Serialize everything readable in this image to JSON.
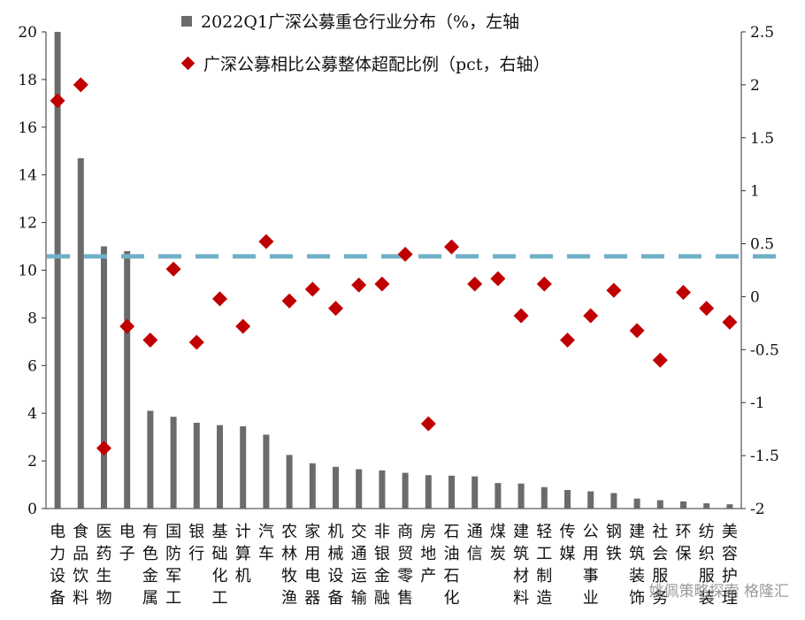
{
  "legend": {
    "bar_label": "2022Q1广深公募重仓行业分布（%，左轴",
    "marker_label": "广深公募相比公募整体超配比例（pct，右轴）"
  },
  "watermark": "姚佩策略探索  格隆汇",
  "colors": {
    "bar": "#6b6b6b",
    "marker": "#c00000",
    "reference_line": "#6fb0c8"
  },
  "chart_data": {
    "type": "bar",
    "categories": [
      "电力设备",
      "食品饮料",
      "医药生物",
      "电子",
      "有色金属",
      "国防军工",
      "银行",
      "基础化工",
      "计算机",
      "汽车",
      "农林牧渔",
      "家用电器",
      "机械设备",
      "交通运输",
      "非银金融",
      "商贸零售",
      "房地产",
      "石油石化",
      "通信",
      "煤炭",
      "建筑材料",
      "轻工制造",
      "传媒",
      "公用事业",
      "钢铁",
      "建筑装饰",
      "社会服务",
      "环保",
      "纺织服装",
      "美容护理"
    ],
    "category_lines": [
      [
        "电",
        "力",
        "设",
        "备"
      ],
      [
        "食",
        "品",
        "饮",
        "料"
      ],
      [
        "医",
        "药",
        "生",
        "物"
      ],
      [
        "电",
        "子"
      ],
      [
        "有",
        "色",
        "金",
        "属"
      ],
      [
        "国",
        "防",
        "军",
        "工"
      ],
      [
        "银",
        "行"
      ],
      [
        "基",
        "础",
        "化",
        "工"
      ],
      [
        "计",
        "算",
        "机"
      ],
      [
        "汽",
        "车"
      ],
      [
        "农",
        "林",
        "牧",
        "渔"
      ],
      [
        "家",
        "用",
        "电",
        "器"
      ],
      [
        "机",
        "械",
        "设",
        "备"
      ],
      [
        "交",
        "通",
        "运",
        "输"
      ],
      [
        "非",
        "银",
        "金",
        "融"
      ],
      [
        "商",
        "贸",
        "零",
        "售"
      ],
      [
        "房",
        "地",
        "产"
      ],
      [
        "石",
        "油",
        "石",
        "化"
      ],
      [
        "通",
        "信"
      ],
      [
        "煤",
        "炭"
      ],
      [
        "建",
        "筑",
        "材",
        "料"
      ],
      [
        "轻",
        "工",
        "制",
        "造"
      ],
      [
        "传",
        "媒"
      ],
      [
        "公",
        "用",
        "事",
        "业"
      ],
      [
        "钢",
        "铁"
      ],
      [
        "建",
        "筑",
        "装",
        "饰"
      ],
      [
        "社",
        "会",
        "服",
        "务"
      ],
      [
        "环",
        "保"
      ],
      [
        "纺",
        "织",
        "服",
        "装"
      ],
      [
        "美",
        "容",
        "护",
        "理"
      ]
    ],
    "series": [
      {
        "name": "2022Q1广深公募重仓行业分布（%，左轴",
        "axis": "left",
        "type": "bar",
        "values": [
          20.0,
          14.7,
          11.0,
          10.8,
          4.1,
          3.85,
          3.6,
          3.5,
          3.45,
          3.1,
          2.25,
          1.9,
          1.75,
          1.65,
          1.6,
          1.5,
          1.4,
          1.38,
          1.35,
          1.07,
          1.05,
          0.9,
          0.78,
          0.72,
          0.65,
          0.42,
          0.35,
          0.3,
          0.22,
          0.18
        ]
      },
      {
        "name": "广深公募相比公募整体超配比例（pct，右轴）",
        "axis": "right",
        "type": "scatter",
        "marker": "diamond",
        "values": [
          1.85,
          2.0,
          -1.43,
          -0.28,
          -0.41,
          0.26,
          -0.43,
          -0.02,
          -0.28,
          0.52,
          -0.04,
          0.07,
          -0.11,
          0.11,
          0.12,
          0.4,
          -1.2,
          0.47,
          0.12,
          0.17,
          -0.18,
          0.12,
          -0.41,
          -0.18,
          0.06,
          -0.32,
          -0.6,
          0.04,
          -0.11,
          -0.24
        ]
      }
    ],
    "reference_line": {
      "axis": "right",
      "value": 0.38,
      "style": "dashed"
    },
    "left_axis": {
      "ylim": [
        0,
        20
      ],
      "ticks": [
        "0",
        "2",
        "4",
        "6",
        "8",
        "10",
        "12",
        "14",
        "16",
        "18",
        "20"
      ]
    },
    "right_axis": {
      "ylim": [
        -2,
        2.5
      ],
      "ticks": [
        "-2",
        "-1.5",
        "-1",
        "-0.5",
        "0",
        "0.5",
        "1",
        "1.5",
        "2",
        "2.5"
      ]
    },
    "grid": false,
    "legend_position": "top"
  }
}
